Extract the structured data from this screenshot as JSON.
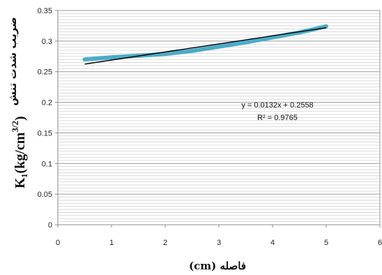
{
  "chart_data": {
    "type": "line",
    "x_ticks": [
      "0",
      "1",
      "2",
      "3",
      "4",
      "5",
      "6"
    ],
    "y_ticks": [
      "0",
      "0.05",
      "0.1",
      "0.15",
      "0.2",
      "0.25",
      "0.3",
      "0.35"
    ],
    "xlim": [
      0,
      6
    ],
    "ylim": [
      0,
      0.35
    ],
    "grid": "horizontal",
    "series": [
      {
        "x": [
          0.5,
          0.8,
          1.1,
          1.5,
          2.0,
          2.5,
          3.0,
          3.5,
          4.0,
          4.5,
          5.0
        ],
        "values": [
          0.27,
          0.272,
          0.274,
          0.276,
          0.279,
          0.284,
          0.291,
          0.298,
          0.306,
          0.314,
          0.324
        ],
        "color": "#4bacc6"
      }
    ],
    "trendline": {
      "x": [
        0.5,
        5.0
      ],
      "values": [
        0.2624,
        0.3218
      ],
      "color": "#000000"
    },
    "equation": "y = 0.0132x + 0.2558",
    "r_squared": "R² = 0.9765",
    "xlabel": "(cm) فاصله",
    "ylabel_arabic": "ضریب شدت تنش",
    "ylabel_symbol": "K₁(kg/cm",
    "ylabel_exponent": "3/2",
    "ylabel_close": ")"
  }
}
